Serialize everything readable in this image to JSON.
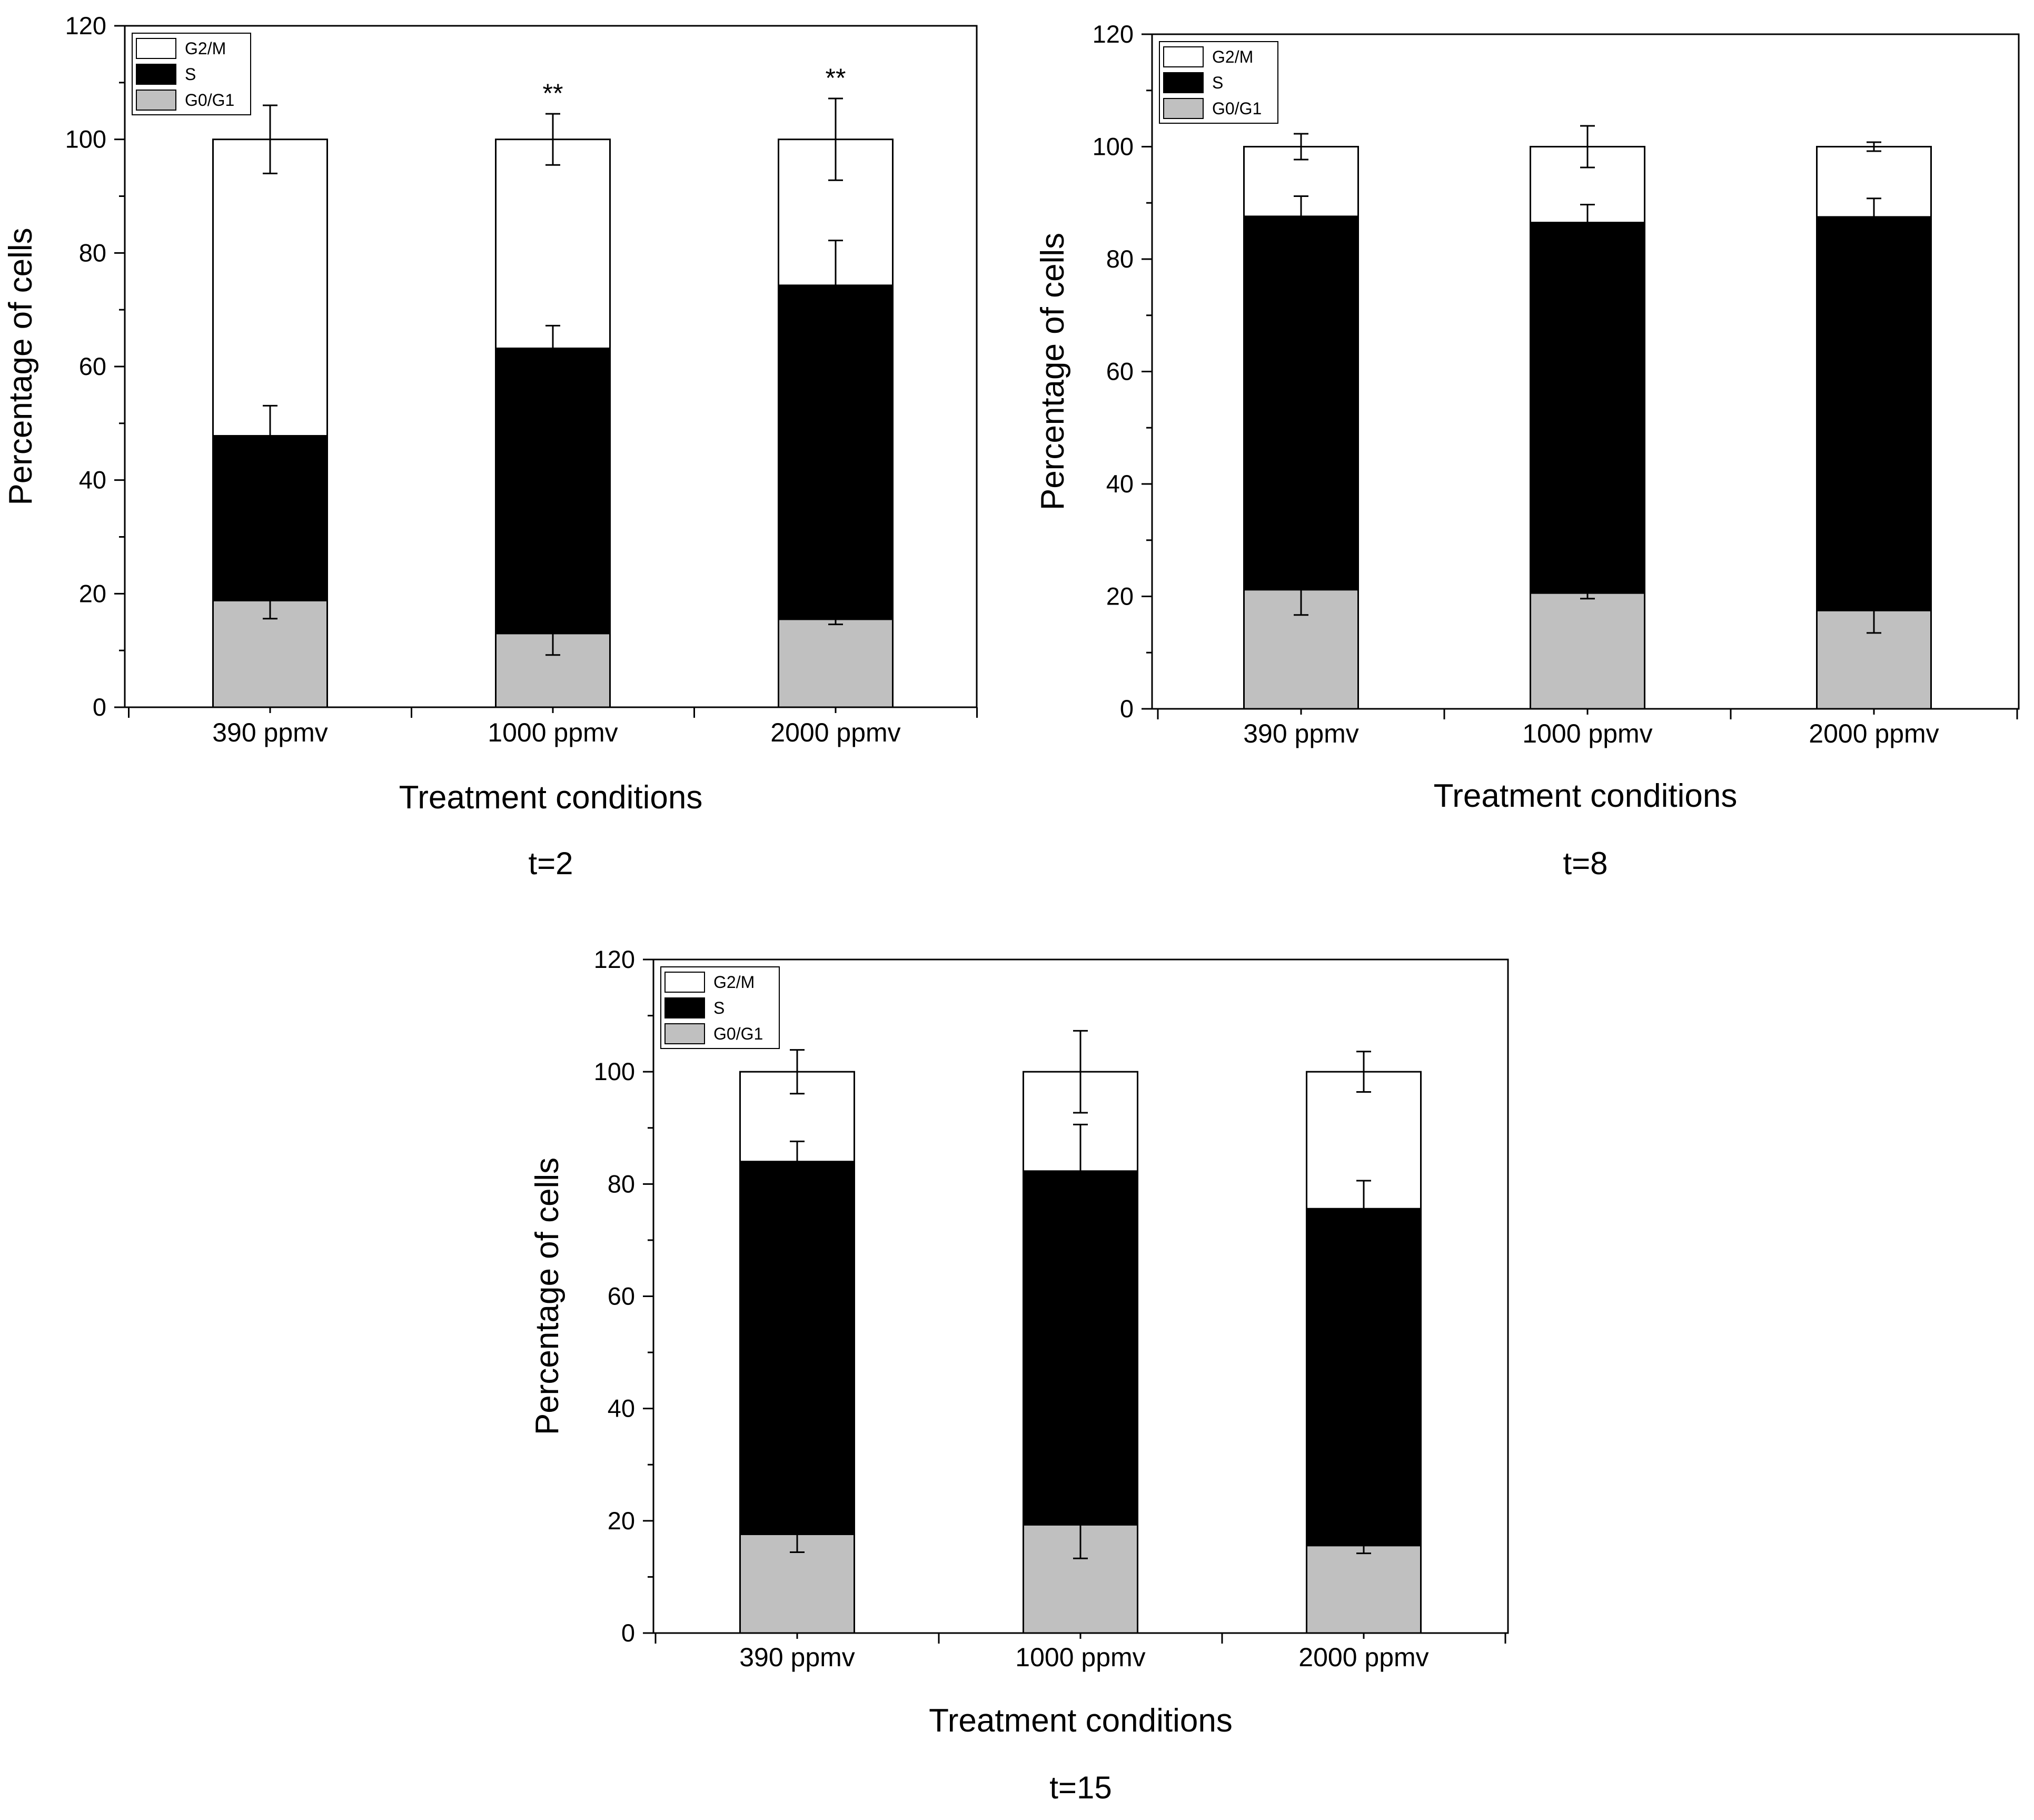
{
  "chart_data": [
    {
      "type": "bar",
      "stacked": true,
      "caption": "t=2",
      "xlabel": "Treatment conditions",
      "ylabel": "Percentage of cells",
      "categories": [
        "390 ppmv",
        "1000 ppmv",
        "2000 ppmv"
      ],
      "ylim": [
        0,
        120
      ],
      "yticks": [
        0,
        20,
        40,
        60,
        80,
        100,
        120
      ],
      "legend": [
        "G2/M",
        "S",
        "G0/G1"
      ],
      "legend_position": "top-left",
      "series": [
        {
          "name": "G0/G1",
          "color": "#c0c0c0",
          "values": [
            18.8,
            13.0,
            15.5
          ],
          "errors": [
            3.2,
            3.8,
            0.9
          ]
        },
        {
          "name": "S",
          "color": "#000000",
          "values": [
            29.0,
            50.2,
            58.8
          ],
          "errors": [
            5.3,
            4.0,
            7.9
          ]
        },
        {
          "name": "G2/M",
          "color": "#ffffff",
          "values": [
            52.2,
            36.8,
            25.7
          ],
          "errors": [
            6.0,
            4.5,
            7.2
          ]
        }
      ],
      "annotations": [
        "",
        "**",
        "**"
      ]
    },
    {
      "type": "bar",
      "stacked": true,
      "caption": "t=8",
      "xlabel": "Treatment conditions",
      "ylabel": "Percentage of cells",
      "categories": [
        "390 ppmv",
        "1000 ppmv",
        "2000 ppmv"
      ],
      "ylim": [
        0,
        120
      ],
      "yticks": [
        0,
        20,
        40,
        60,
        80,
        100,
        120
      ],
      "legend": [
        "G2/M",
        "S",
        "G0/G1"
      ],
      "legend_position": "top-left",
      "series": [
        {
          "name": "G0/G1",
          "color": "#c0c0c0",
          "values": [
            21.2,
            20.6,
            17.5
          ],
          "errors": [
            4.5,
            1.0,
            4.0
          ]
        },
        {
          "name": "S",
          "color": "#000000",
          "values": [
            66.4,
            65.9,
            70.0
          ],
          "errors": [
            3.6,
            3.2,
            3.3
          ]
        },
        {
          "name": "G2/M",
          "color": "#ffffff",
          "values": [
            12.4,
            13.5,
            12.5
          ],
          "errors": [
            2.3,
            3.7,
            0.8
          ]
        }
      ],
      "annotations": [
        "",
        "",
        ""
      ]
    },
    {
      "type": "bar",
      "stacked": true,
      "caption": "t=15",
      "xlabel": "Treatment conditions",
      "ylabel": "Percentage of cells",
      "categories": [
        "390 ppmv",
        "1000 ppmv",
        "2000 ppmv"
      ],
      "ylim": [
        0,
        120
      ],
      "yticks": [
        0,
        20,
        40,
        60,
        80,
        100,
        120
      ],
      "legend": [
        "G2/M",
        "S",
        "G0/G1"
      ],
      "legend_position": "top-left",
      "series": [
        {
          "name": "G0/G1",
          "color": "#c0c0c0",
          "values": [
            17.6,
            19.3,
            15.6
          ],
          "errors": [
            3.2,
            6.0,
            1.4
          ]
        },
        {
          "name": "S",
          "color": "#000000",
          "values": [
            66.4,
            63.0,
            60.0
          ],
          "errors": [
            3.6,
            8.3,
            5.0
          ]
        },
        {
          "name": "G2/M",
          "color": "#ffffff",
          "values": [
            16.0,
            17.7,
            24.4
          ],
          "errors": [
            3.9,
            7.3,
            3.6
          ]
        }
      ],
      "annotations": [
        "",
        "",
        ""
      ]
    }
  ]
}
